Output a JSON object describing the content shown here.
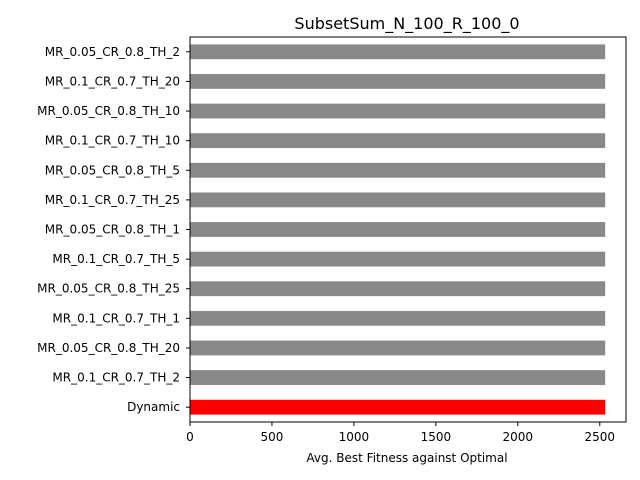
{
  "chart_data": {
    "type": "bar",
    "orientation": "horizontal",
    "title": "SubsetSum_N_100_R_100_0",
    "xlabel": "Avg. Best Fitness against Optimal",
    "ylabel": "",
    "xlim": [
      0,
      2660
    ],
    "xticks": [
      0,
      500,
      1000,
      1500,
      2000,
      2500
    ],
    "categories": [
      "MR_0.05_CR_0.8_TH_2",
      "MR_0.1_CR_0.7_TH_20",
      "MR_0.05_CR_0.8_TH_10",
      "MR_0.1_CR_0.7_TH_10",
      "MR_0.05_CR_0.8_TH_5",
      "MR_0.1_CR_0.7_TH_25",
      "MR_0.05_CR_0.8_TH_1",
      "MR_0.1_CR_0.7_TH_5",
      "MR_0.05_CR_0.8_TH_25",
      "MR_0.1_CR_0.7_TH_1",
      "MR_0.05_CR_0.8_TH_20",
      "MR_0.1_CR_0.7_TH_2",
      "Dynamic"
    ],
    "values": [
      2533,
      2533,
      2533,
      2533,
      2533,
      2533,
      2533,
      2533,
      2533,
      2533,
      2533,
      2533,
      2533
    ],
    "colors": [
      "#888888",
      "#888888",
      "#888888",
      "#888888",
      "#888888",
      "#888888",
      "#888888",
      "#888888",
      "#888888",
      "#888888",
      "#888888",
      "#888888",
      "#ff0000"
    ],
    "grid": false,
    "legend": "none"
  }
}
